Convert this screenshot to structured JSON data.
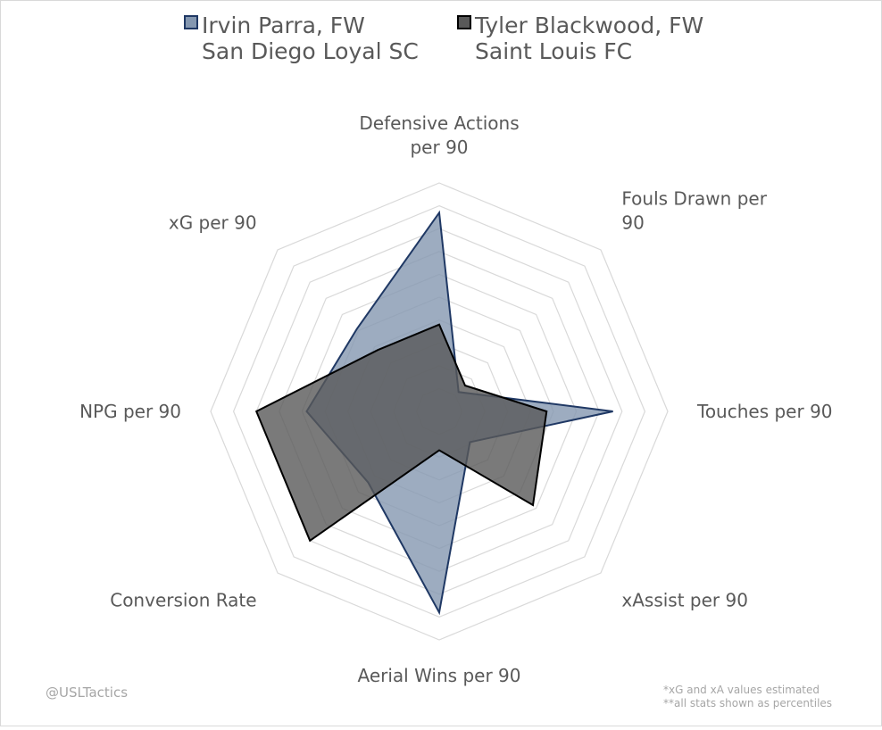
{
  "legend": [
    {
      "line1": "Irvin Parra, FW",
      "line2": "San Diego Loyal SC"
    },
    {
      "line1": "Tyler Blackwood, FW",
      "line2": "Saint Louis FC"
    }
  ],
  "credit": "@USLTactics",
  "notes": [
    "*xG and xA values estimated",
    "**all stats shown as percentiles"
  ],
  "chart_data": {
    "type": "radar",
    "axes": [
      [
        "Defensive Actions",
        "per 90"
      ],
      [
        "Fouls Drawn per",
        "90"
      ],
      [
        "Touches per 90"
      ],
      [
        "xAssist per 90"
      ],
      [
        "Aerial Wins per 90"
      ],
      [
        "Conversion Rate"
      ],
      [
        "NPG per 90"
      ],
      [
        "xG per 90"
      ]
    ],
    "range": [
      0,
      100
    ],
    "grid_rings": 10,
    "series": [
      {
        "name": "Irvin Parra, FW San Diego Loyal SC",
        "values": [
          87,
          12,
          76,
          19,
          88,
          44,
          58,
          51
        ],
        "fill": "#8497b0",
        "stroke": "#1f3864"
      },
      {
        "name": "Tyler Blackwood, FW Saint Louis FC",
        "values": [
          38,
          16,
          47,
          58,
          17,
          80,
          80,
          38
        ],
        "fill": "#595959",
        "stroke": "#000000"
      }
    ]
  }
}
